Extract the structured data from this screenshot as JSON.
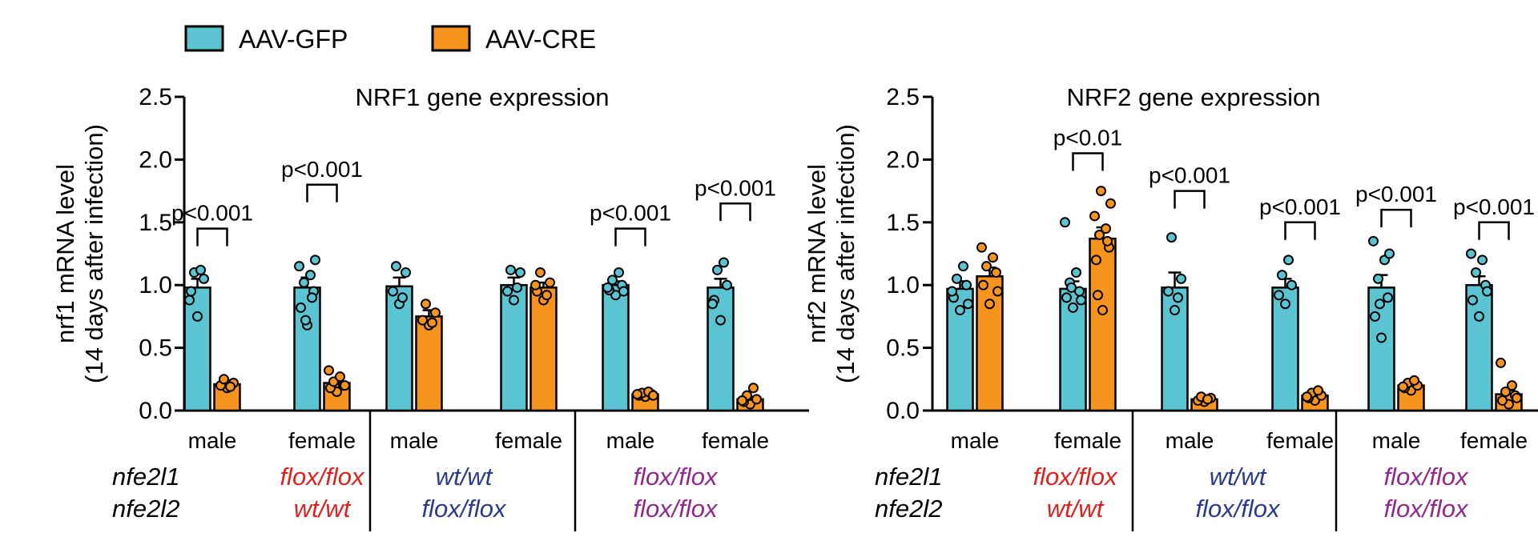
{
  "legend": [
    {
      "label": "AAV-GFP",
      "color": "#5bc4d2"
    },
    {
      "label": "AAV-CRE",
      "color": "#f7941d"
    }
  ],
  "genotype_rows": [
    {
      "gene": "nfe2l1",
      "groups": [
        {
          "text": "flox/flox",
          "color": "#e0201c"
        },
        {
          "text": "wt/wt",
          "color": "#2b3990"
        },
        {
          "text": "flox/flox",
          "color": "#92278f"
        }
      ]
    },
    {
      "gene": "nfe2l2",
      "groups": [
        {
          "text": "wt/wt",
          "color": "#e0201c"
        },
        {
          "text": "flox/flox",
          "color": "#2b3990"
        },
        {
          "text": "flox/flox",
          "color": "#92278f"
        }
      ]
    }
  ],
  "chart_data": [
    {
      "type": "bar",
      "title": "NRF1 gene expression",
      "ylabel": "nrf1 mRNA level",
      "ylabel2": "(14 days after infection)",
      "ylim": [
        0,
        2.5
      ],
      "yticks": [
        "0.0",
        "0.5",
        "1.0",
        "1.5",
        "2.0",
        "2.5"
      ],
      "categories": [
        "male",
        "female",
        "male",
        "female",
        "male",
        "female"
      ],
      "series": [
        {
          "name": "AAV-GFP",
          "values": [
            0.98,
            0.98,
            0.99,
            1.0,
            1.0,
            0.98
          ],
          "errors": [
            0.07,
            0.08,
            0.07,
            0.06,
            0.03,
            0.07
          ],
          "points": [
            [
              0.75,
              0.95,
              1.05,
              1.1,
              1.12,
              0.88
            ],
            [
              0.68,
              0.82,
              0.95,
              1.02,
              1.08,
              1.15,
              1.2,
              0.72,
              0.9
            ],
            [
              0.85,
              0.95,
              1.1,
              1.15,
              0.9
            ],
            [
              0.88,
              0.95,
              1.1,
              1.12,
              0.98
            ],
            [
              0.92,
              0.96,
              1.0,
              1.04,
              1.1,
              0.98,
              0.95
            ],
            [
              0.72,
              0.88,
              1.0,
              1.12,
              1.18,
              0.85
            ]
          ]
        },
        {
          "name": "AAV-CRE",
          "values": [
            0.21,
            0.22,
            0.75,
            0.98,
            0.13,
            0.09
          ],
          "errors": [
            0.03,
            0.03,
            0.05,
            0.04,
            0.01,
            0.02
          ],
          "points": [
            [
              0.18,
              0.2,
              0.22,
              0.25,
              0.19
            ],
            [
              0.15,
              0.18,
              0.2,
              0.23,
              0.27,
              0.32,
              0.2
            ],
            [
              0.68,
              0.72,
              0.78,
              0.85,
              0.7
            ],
            [
              0.88,
              0.95,
              1.02,
              1.1,
              0.92,
              1.0
            ],
            [
              0.11,
              0.12,
              0.13,
              0.14,
              0.15,
              0.13,
              0.12
            ],
            [
              0.05,
              0.07,
              0.09,
              0.12,
              0.18,
              0.08
            ]
          ]
        }
      ],
      "annotations": [
        {
          "label": "p<0.001",
          "pair": 0,
          "y": 1.45
        },
        {
          "label": "p<0.001",
          "pair": 1,
          "y": 1.8
        },
        {
          "label": "p<0.001",
          "pair": 4,
          "y": 1.45
        },
        {
          "label": "p<0.001",
          "pair": 5,
          "y": 1.65
        }
      ]
    },
    {
      "type": "bar",
      "title": "NRF2 gene expression",
      "ylabel": "nrf2 mRNA level",
      "ylabel2": "(14 days after infection)",
      "ylim": [
        0,
        2.5
      ],
      "yticks": [
        "0.0",
        "0.5",
        "1.0",
        "1.5",
        "2.0",
        "2.5"
      ],
      "categories": [
        "male",
        "female",
        "male",
        "female",
        "male",
        "female"
      ],
      "series": [
        {
          "name": "AAV-GFP",
          "values": [
            0.97,
            0.97,
            0.98,
            0.98,
            0.98,
            1.0
          ],
          "errors": [
            0.06,
            0.06,
            0.12,
            0.07,
            0.1,
            0.07
          ],
          "points": [
            [
              0.8,
              0.9,
              1.0,
              1.05,
              1.15,
              0.95,
              0.85
            ],
            [
              0.82,
              0.9,
              0.95,
              1.02,
              1.1,
              1.5,
              0.88,
              0.98
            ],
            [
              0.8,
              0.95,
              1.05,
              1.38,
              0.9
            ],
            [
              0.85,
              0.92,
              1.0,
              1.08,
              1.2
            ],
            [
              0.58,
              0.75,
              0.9,
              1.05,
              1.2,
              1.35,
              1.25,
              0.85
            ],
            [
              0.75,
              0.88,
              1.0,
              1.1,
              1.2,
              1.25,
              0.95
            ]
          ]
        },
        {
          "name": "AAV-CRE",
          "values": [
            1.07,
            1.37,
            0.09,
            0.12,
            0.2,
            0.13
          ],
          "errors": [
            0.07,
            0.09,
            0.01,
            0.02,
            0.01,
            0.03
          ],
          "points": [
            [
              0.85,
              1.0,
              1.1,
              1.15,
              1.22,
              1.3,
              0.95
            ],
            [
              0.8,
              1.2,
              1.3,
              1.4,
              1.45,
              1.55,
              1.65,
              1.75,
              1.35,
              0.92
            ],
            [
              0.07,
              0.08,
              0.1,
              0.11,
              0.09
            ],
            [
              0.08,
              0.1,
              0.12,
              0.14,
              0.16,
              0.11
            ],
            [
              0.16,
              0.18,
              0.2,
              0.22,
              0.24,
              0.19
            ],
            [
              0.05,
              0.08,
              0.12,
              0.15,
              0.2,
              0.38,
              0.1
            ]
          ]
        }
      ],
      "annotations": [
        {
          "label": "p<0.01",
          "pair": 1,
          "y": 2.05
        },
        {
          "label": "p<0.001",
          "pair": 2,
          "y": 1.75
        },
        {
          "label": "p<0.001",
          "pair": 3,
          "y": 1.5
        },
        {
          "label": "p<0.001",
          "pair": 4,
          "y": 1.6
        },
        {
          "label": "p<0.001",
          "pair": 5,
          "y": 1.5
        }
      ]
    }
  ]
}
